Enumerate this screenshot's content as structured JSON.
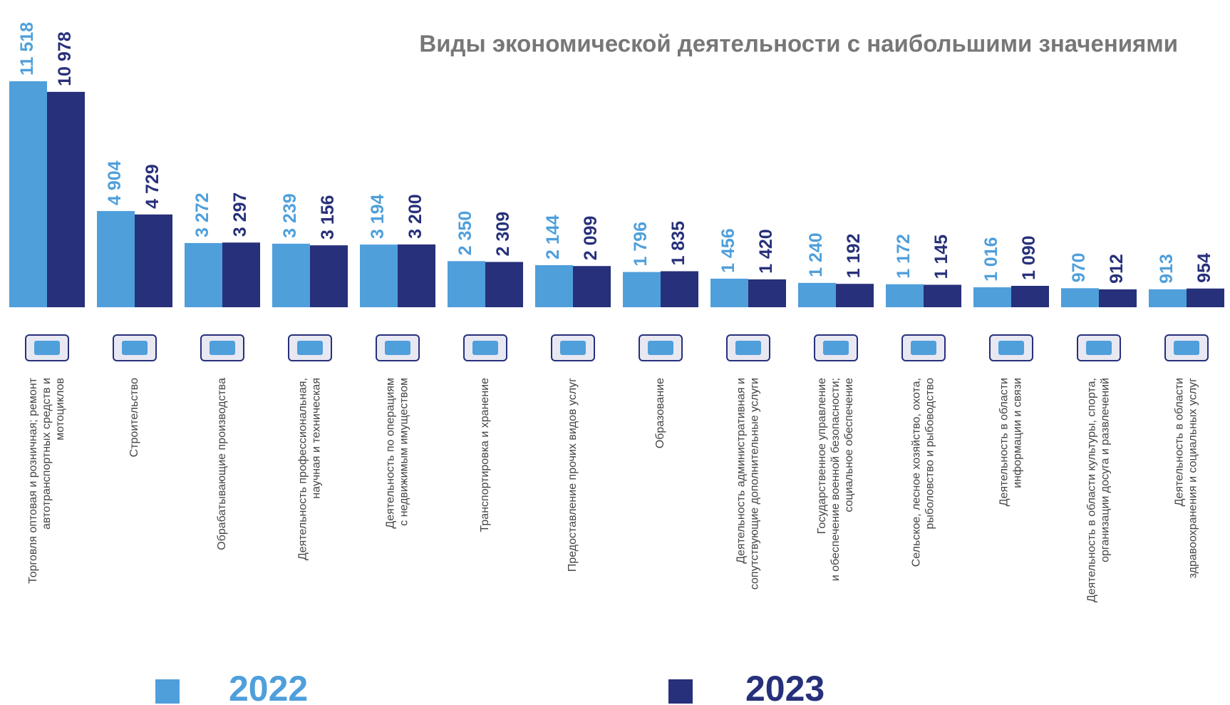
{
  "chart_data": {
    "type": "bar",
    "title": "Виды экономической деятельности с наибольшими значениями",
    "categories": [
      [
        "Торговля оптовая и розничная; ремонт",
        "автотранспортных средств и",
        "мотоциклов"
      ],
      [
        "Строительство"
      ],
      [
        "Обрабатывающие производства"
      ],
      [
        "Деятельность профессиональная,",
        "научная и техническая"
      ],
      [
        "Деятельность по операциям",
        "с недвижимым имуществом"
      ],
      [
        "Транспортировка и хранение"
      ],
      [
        "Предоставление прочих видов услуг"
      ],
      [
        "Образование"
      ],
      [
        "Деятельность административная и",
        "сопутствующие дополнительные услуги"
      ],
      [
        "Государственное управление",
        "и обеспечение военной безопасности;",
        "социальное обеспечение"
      ],
      [
        "Сельское, лесное хозяйство, охота,",
        "рыболовство и рыбоводство"
      ],
      [
        "Деятельность в области",
        "информации и связи"
      ],
      [
        "Деятельность в области культуры, спорта,",
        "организации досуга и развлечений"
      ],
      [
        "Деятельность в области",
        "здравоохранения и социальных услуг"
      ]
    ],
    "series": [
      {
        "name": "2022",
        "color": "#4f9fdb",
        "values": [
          11518,
          4904,
          3272,
          3239,
          3194,
          2350,
          2144,
          1796,
          1456,
          1240,
          1172,
          1016,
          970,
          913
        ],
        "value_labels": [
          "11 518",
          "4 904",
          "3 272",
          "3 239",
          "3 194",
          "2 350",
          "2 144",
          "1 796",
          "1 456",
          "1 240",
          "1 172",
          "1 016",
          "970",
          "913"
        ]
      },
      {
        "name": "2023",
        "color": "#27307a",
        "values": [
          10978,
          4729,
          3297,
          3156,
          3200,
          2309,
          2099,
          1835,
          1420,
          1192,
          1145,
          1090,
          912,
          954
        ],
        "value_labels": [
          "10 978",
          "4 729",
          "3 297",
          "3 156",
          "3 200",
          "2 309",
          "2 099",
          "1 835",
          "1 420",
          "1 192",
          "1 145",
          "1 090",
          "912",
          "954"
        ]
      }
    ]
  }
}
